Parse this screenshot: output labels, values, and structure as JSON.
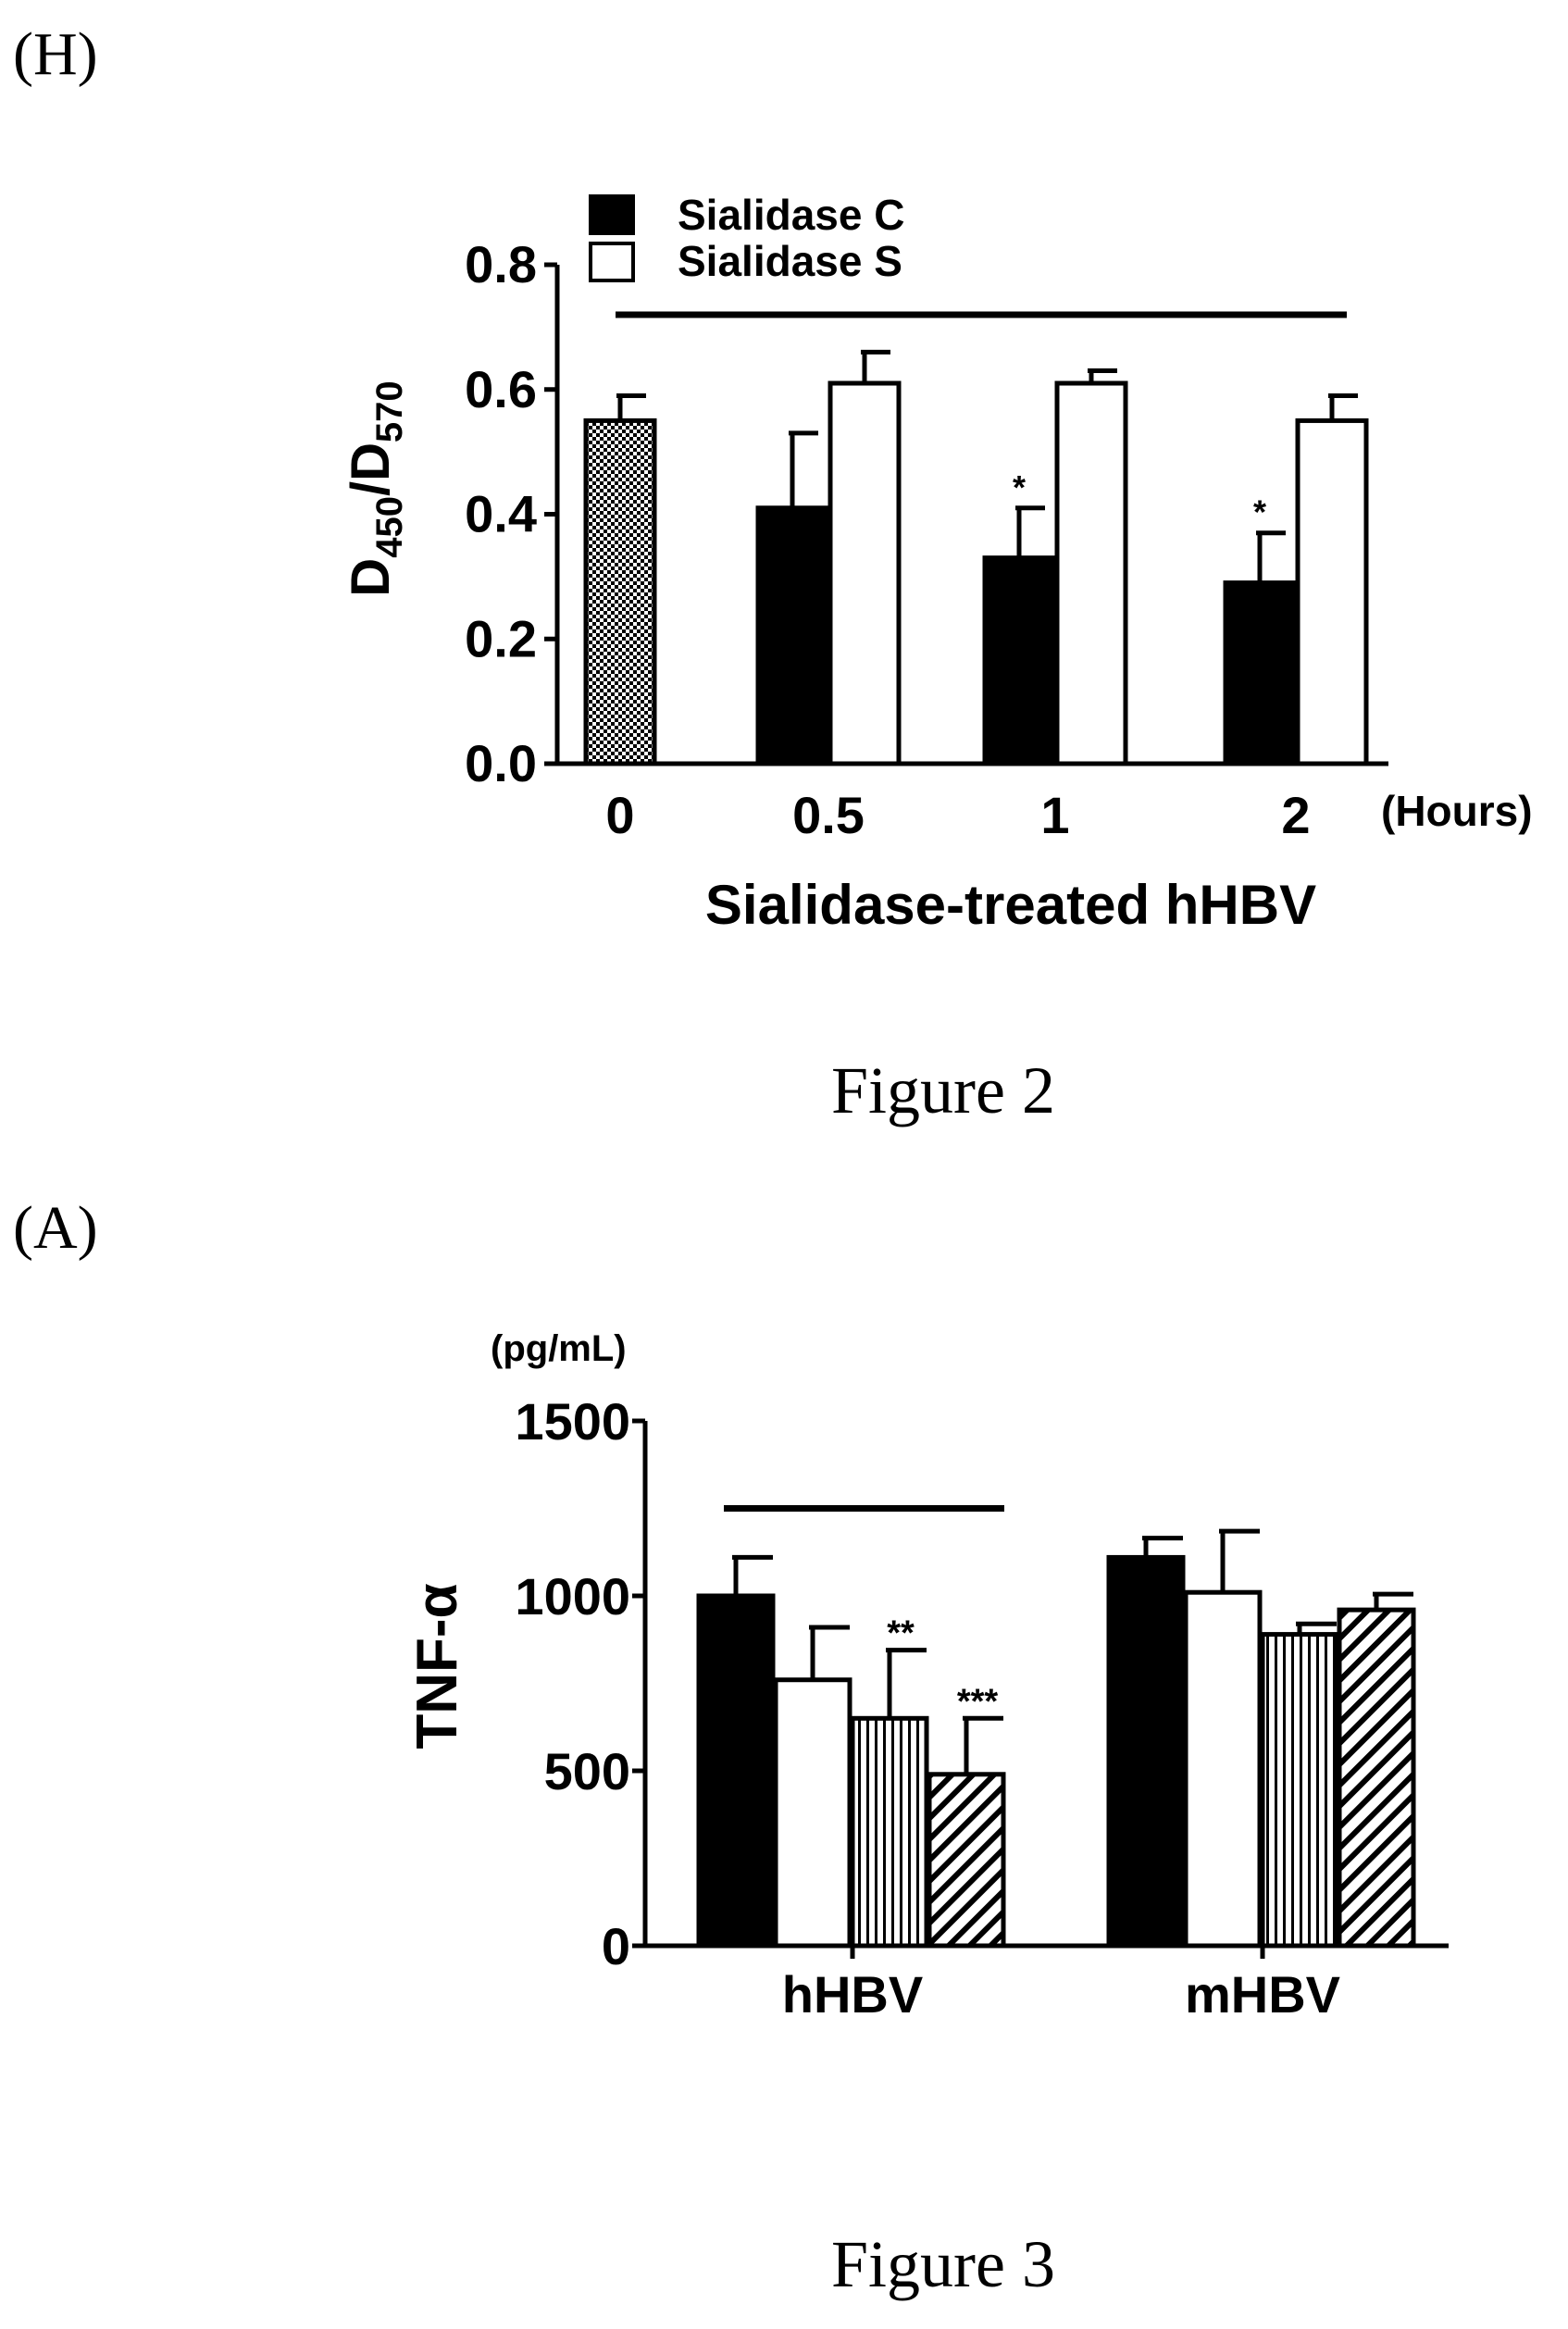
{
  "panel_h_label": "(H)",
  "figure2_caption": "Figure 2",
  "panel_a_label": "(A)",
  "figure3_caption": "Figure 3",
  "chart_data": [
    {
      "type": "bar",
      "ylabel_main": "D",
      "ylabel_sub1": "450",
      "ylabel_mid": "/D",
      "ylabel_sub2": "570",
      "xlabel": "Sialidase-treated hHBV",
      "x_unit": "(Hours)",
      "ylim": [
        0,
        0.8
      ],
      "yticks": [
        0.0,
        0.2,
        0.4,
        0.6,
        0.8
      ],
      "ytick_labels": [
        "0.0",
        "0.2",
        "0.4",
        "0.6",
        "0.8"
      ],
      "categories": [
        "0",
        "0.5",
        "1",
        "2"
      ],
      "legend": [
        {
          "name": "Sialidase C",
          "pattern": "solid"
        },
        {
          "name": "Sialidase S",
          "pattern": "open"
        }
      ],
      "bars": [
        {
          "category": 0,
          "slot": "center",
          "value": 0.55,
          "err": 0.04,
          "pattern": "checker",
          "star": ""
        },
        {
          "category": 1,
          "slot": "left",
          "value": 0.41,
          "err": 0.12,
          "pattern": "solid",
          "star": ""
        },
        {
          "category": 1,
          "slot": "right",
          "value": 0.61,
          "err": 0.05,
          "pattern": "open",
          "star": ""
        },
        {
          "category": 2,
          "slot": "left",
          "value": 0.33,
          "err": 0.08,
          "pattern": "solid",
          "star": "*"
        },
        {
          "category": 2,
          "slot": "right",
          "value": 0.61,
          "err": 0.02,
          "pattern": "open",
          "star": ""
        },
        {
          "category": 3,
          "slot": "left",
          "value": 0.29,
          "err": 0.08,
          "pattern": "solid",
          "star": "*"
        },
        {
          "category": 3,
          "slot": "right",
          "value": 0.55,
          "err": 0.04,
          "pattern": "open",
          "star": ""
        }
      ],
      "bracket": {
        "from_category": 0,
        "to_category": 3,
        "y": 0.72
      }
    },
    {
      "type": "bar",
      "ylabel": "TNF-α",
      "yunit": "(pg/mL)",
      "ylim": [
        0,
        1500
      ],
      "yticks": [
        0,
        500,
        1000,
        1500
      ],
      "ytick_labels": [
        "0",
        "500",
        "1000",
        "1500"
      ],
      "categories": [
        "hHBV",
        "mHBV"
      ],
      "groups": [
        {
          "name": "hHBV",
          "bars": [
            {
              "value": 1000,
              "err": 110,
              "pattern": "solid",
              "star": ""
            },
            {
              "value": 760,
              "err": 150,
              "pattern": "open",
              "star": ""
            },
            {
              "value": 650,
              "err": 195,
              "pattern": "vertical",
              "star": "**"
            },
            {
              "value": 490,
              "err": 160,
              "pattern": "diagonal",
              "star": "***"
            }
          ]
        },
        {
          "name": "mHBV",
          "bars": [
            {
              "value": 1110,
              "err": 55,
              "pattern": "solid",
              "star": ""
            },
            {
              "value": 1010,
              "err": 175,
              "pattern": "open",
              "star": ""
            },
            {
              "value": 890,
              "err": 30,
              "pattern": "vertical",
              "star": ""
            },
            {
              "value": 960,
              "err": 45,
              "pattern": "diagonal",
              "star": ""
            }
          ]
        }
      ],
      "bracket": {
        "group": 0,
        "y": 1250
      }
    }
  ]
}
